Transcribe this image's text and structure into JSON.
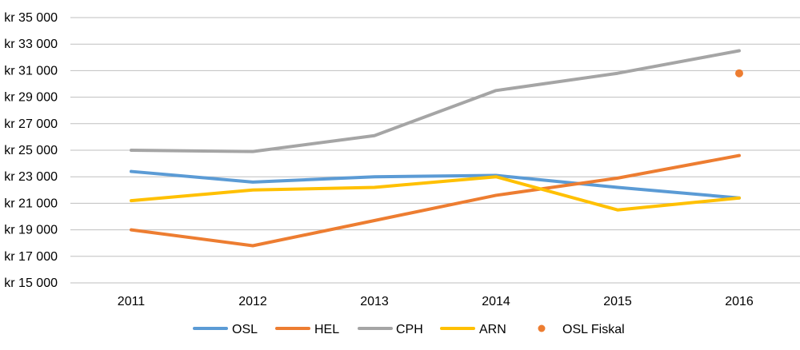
{
  "chart_data": {
    "type": "line",
    "title": "",
    "xlabel": "",
    "ylabel": "",
    "categories": [
      "2011",
      "2012",
      "2013",
      "2014",
      "2015",
      "2016"
    ],
    "ylim": [
      15000,
      35000
    ],
    "ytick_step": 2000,
    "ytick_labels": [
      "kr 15 000",
      "kr 17 000",
      "kr 19 000",
      "kr 21 000",
      "kr 23 000",
      "kr 25 000",
      "kr 27 000",
      "kr 29 000",
      "kr 31 000",
      "kr 33 000",
      "kr 35 000"
    ],
    "grid": true,
    "legend_position": "bottom",
    "series": [
      {
        "name": "OSL",
        "color": "#5b9bd5",
        "values": [
          23400,
          22600,
          23000,
          23100,
          22200,
          21400
        ]
      },
      {
        "name": "HEL",
        "color": "#ed7d31",
        "values": [
          19000,
          17800,
          19700,
          21600,
          22900,
          24600
        ]
      },
      {
        "name": "CPH",
        "color": "#a5a5a5",
        "values": [
          25000,
          24900,
          26100,
          29500,
          30800,
          32500
        ]
      },
      {
        "name": "ARN",
        "color": "#ffc000",
        "values": [
          21200,
          22000,
          22200,
          23000,
          20500,
          21400
        ]
      }
    ],
    "points": [
      {
        "name": "OSL Fiskal",
        "color": "#ed7d31",
        "category": "2016",
        "value": 30800
      }
    ]
  }
}
